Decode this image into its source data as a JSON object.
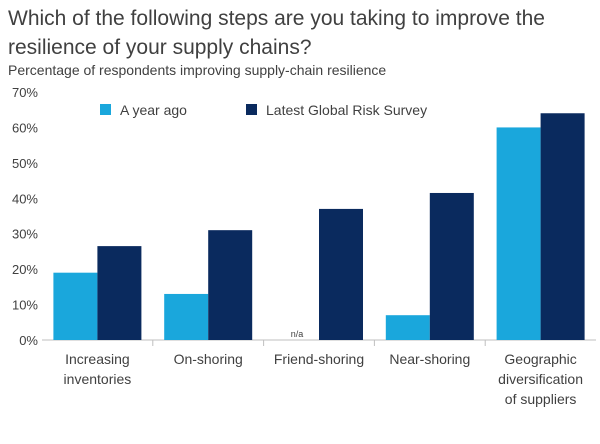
{
  "title": "Which of the following steps are you taking to improve the resilience of your supply chains?",
  "chart_data": {
    "type": "bar",
    "subtitle": "Percentage of respondents improving supply-chain resilience",
    "categories": [
      [
        "Increasing",
        "inventories"
      ],
      [
        "On-shoring"
      ],
      [
        "Friend-shoring"
      ],
      [
        "Near-shoring"
      ],
      [
        "Geographic",
        "diversification",
        "of suppliers"
      ]
    ],
    "series": [
      {
        "name": "A year ago",
        "color": "#1aa7dc",
        "values": [
          19,
          13,
          null,
          7,
          60
        ]
      },
      {
        "name": "Latest Global Risk Survey",
        "color": "#0a2a5e",
        "values": [
          26.5,
          31,
          37,
          41.5,
          64
        ]
      }
    ],
    "missing_label": "n/a",
    "ylim": [
      0,
      70
    ],
    "yticks": [
      0,
      10,
      20,
      30,
      40,
      50,
      60,
      70
    ],
    "ytick_format": "%",
    "legend_position": "top-left",
    "grid": false
  }
}
